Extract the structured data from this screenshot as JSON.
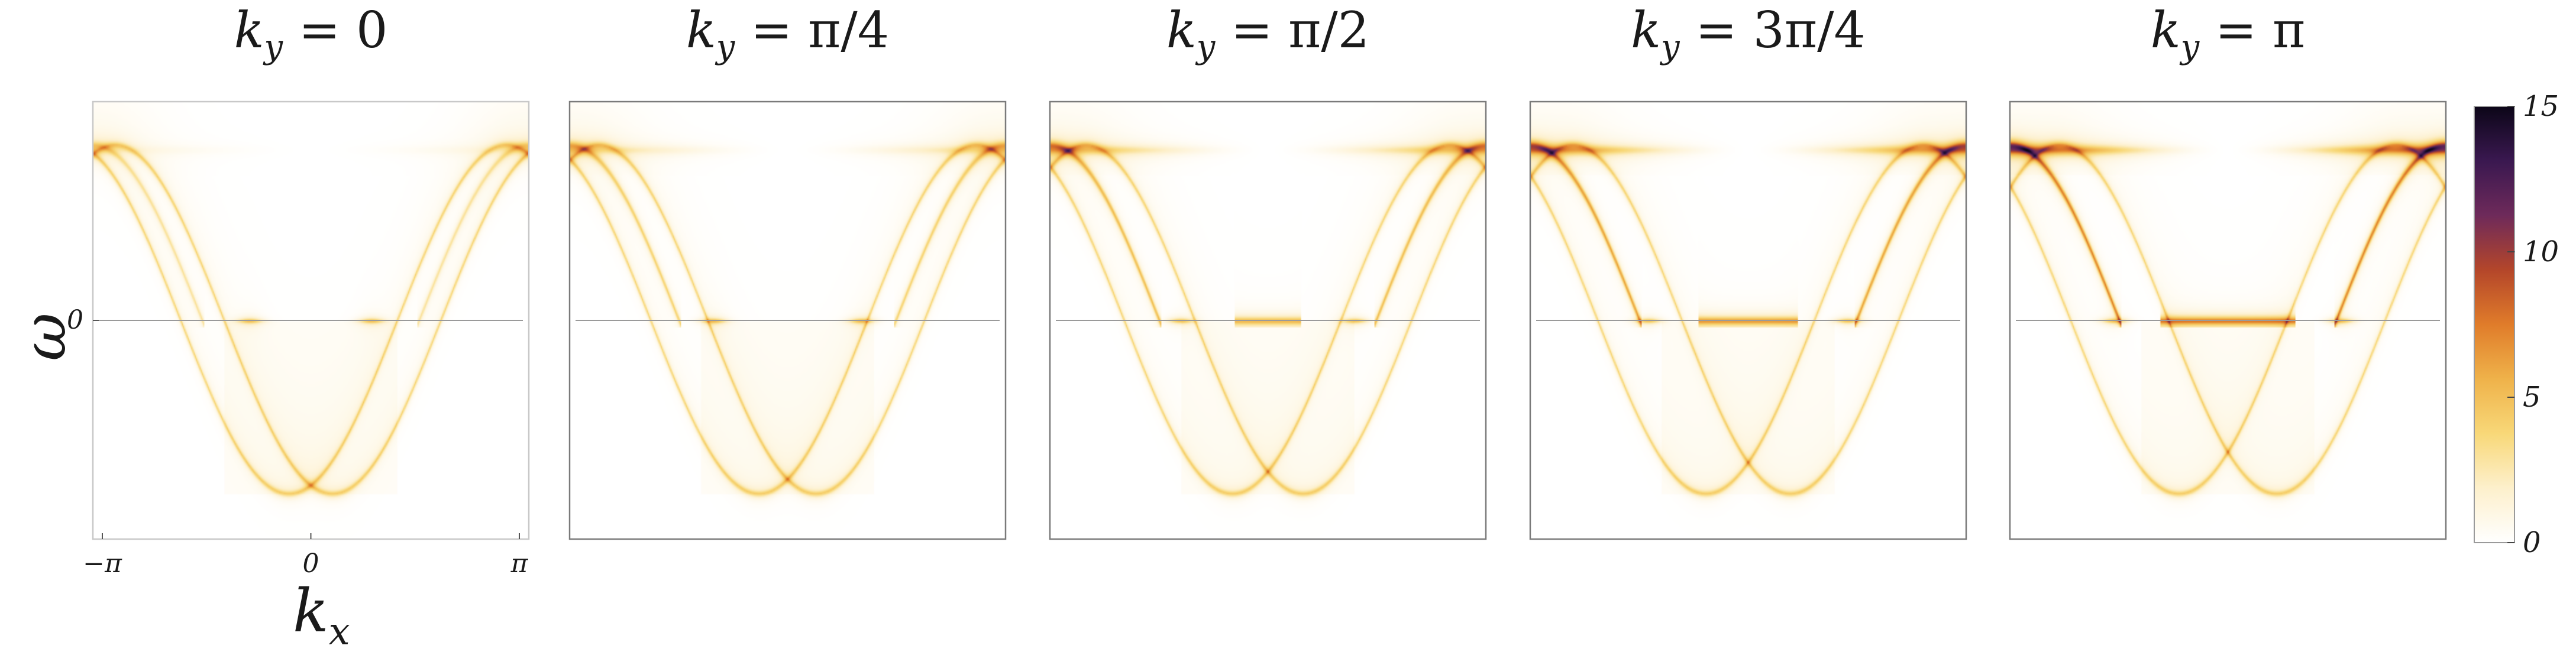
{
  "chart_data": {
    "type": "heatmap",
    "description_note": "",
    "panels": [
      {
        "title": "k_y = 0",
        "ky": 0,
        "title_parts": [
          "k",
          "y",
          " = 0"
        ]
      },
      {
        "title": "k_y = π/4",
        "ky": 0.25,
        "title_parts": [
          "k",
          "y",
          " = π/4"
        ]
      },
      {
        "title": "k_y = π/2",
        "ky": 0.5,
        "title_parts": [
          "k",
          "y",
          " = π/2"
        ]
      },
      {
        "title": "k_y = 3π/4",
        "ky": 0.75,
        "title_parts": [
          "k",
          "y",
          " = 3π/4"
        ]
      },
      {
        "title": "k_y = π",
        "ky": 1.0,
        "title_parts": [
          "k",
          "y",
          " = π"
        ]
      }
    ],
    "x_axis": {
      "label": "k",
      "label_sub": "x",
      "range": [
        -3.1416,
        3.1416
      ],
      "ticks": [
        {
          "value": -3.1416,
          "label": "−π"
        },
        {
          "value": 0,
          "label": "0"
        },
        {
          "value": 3.1416,
          "label": "π"
        }
      ]
    },
    "y_axis": {
      "label": "ω",
      "ticks": [
        {
          "value": 0,
          "label": "0"
        }
      ]
    },
    "colorbar": {
      "range": [
        0,
        15
      ],
      "ticks": [
        {
          "value": 0,
          "label": "0"
        },
        {
          "value": 5,
          "label": "5"
        },
        {
          "value": 10,
          "label": "10"
        },
        {
          "value": 15,
          "label": "15"
        }
      ],
      "colors": [
        "#ffffff",
        "#fdf0cc",
        "#f8d878",
        "#efb24a",
        "#e07c2a",
        "#b4462a",
        "#6e2a5a",
        "#3a1850",
        "#0c0618"
      ]
    }
  }
}
